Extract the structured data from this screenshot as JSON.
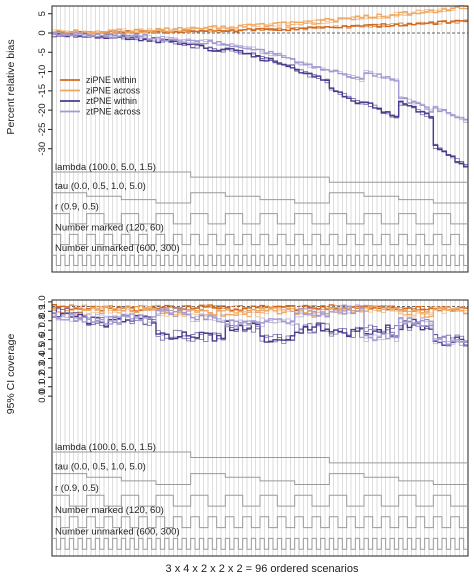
{
  "colors": {
    "zipne_within": "#d2691e",
    "zipne_across": "#f0a860",
    "ztpne_within": "#4b3a8c",
    "ztpne_across": "#a39ad0",
    "step_lines": "#9a9a9a",
    "frame": "#222222",
    "grid": "#c8c8c8"
  },
  "chart_data": [
    {
      "type": "line",
      "ylabel": "Percent relative bias",
      "ylim": [
        -35,
        7
      ],
      "yticks": [
        5,
        0,
        -5,
        -10,
        -15,
        -20,
        -25,
        -30
      ],
      "reference_line": 0,
      "x": {
        "n_scenarios": 96
      },
      "legend": {
        "position": "upper-left",
        "entries": [
          "ziPNE within",
          "ziPNE across",
          "ztPNE within",
          "ztPNE across"
        ]
      },
      "series": [
        {
          "name": "ziPNE within",
          "color_key": "zipne_within",
          "baseline": 0.1,
          "spread": 0.4,
          "amp": 0.25,
          "pos": true
        },
        {
          "name": "ziPNE across",
          "color_key": "zipne_across",
          "baseline": 0.3,
          "spread": 0.6,
          "amp": 0.55,
          "pos": true
        },
        {
          "name": "ztPNE within",
          "color_key": "ztpne_within",
          "baseline": -0.5,
          "spread": 0.6,
          "amp": -1.0,
          "pos": false
        },
        {
          "name": "ztPNE across",
          "color_key": "ztpne_across",
          "baseline": -0.3,
          "spread": 0.6,
          "amp": -0.7,
          "pos": false
        }
      ],
      "factor_labels": [
        "lambda (100.0, 5.0, 1.5)",
        "tau (0.0, 0.5, 1.0, 5.0)",
        "r (0.9, 0.5)",
        "Number marked (120, 60)",
        "Number unmarked (600, 300)"
      ]
    },
    {
      "type": "line",
      "ylabel": "95% CI coverage",
      "ylim": [
        -0.55,
        1.02
      ],
      "yticks": [
        1.0,
        0.9,
        0.8,
        0.7,
        0.6,
        0.5,
        0.4,
        0.3,
        0.2,
        0.1,
        0.0
      ],
      "reference_line": 0.95,
      "x": {
        "n_scenarios": 96
      },
      "series": [
        {
          "name": "ziPNE within",
          "color_key": "zipne_within",
          "baseline": 0.94,
          "spread": 0.03,
          "drop": 0.02
        },
        {
          "name": "ziPNE across",
          "color_key": "zipne_across",
          "baseline": 0.93,
          "spread": 0.04,
          "drop": 0.08
        },
        {
          "name": "ztPNE within",
          "color_key": "ztpne_within",
          "baseline": 0.9,
          "spread": 0.06,
          "drop": 0.55
        },
        {
          "name": "ztPNE across",
          "color_key": "ztpne_across",
          "baseline": 0.92,
          "spread": 0.05,
          "drop": 0.35
        }
      ],
      "factor_labels": [
        "lambda (100.0, 5.0, 1.5)",
        "tau (0.0, 0.5, 1.0, 5.0)",
        "r (0.9, 0.5)",
        "Number marked (120, 60)",
        "Number unmarked (600, 300)"
      ]
    }
  ],
  "xlabel": "3 x 4 x 2 x 2 x 2 = 96 ordered scenarios"
}
